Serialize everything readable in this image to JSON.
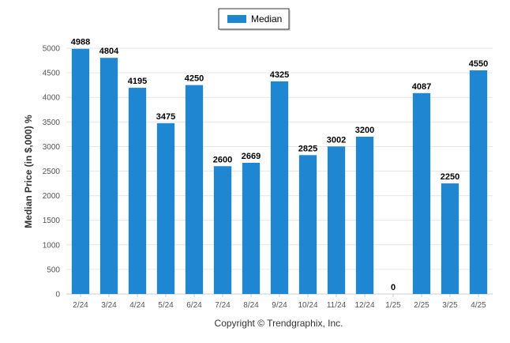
{
  "chart_data": {
    "type": "bar",
    "categories": [
      "2/24",
      "3/24",
      "4/24",
      "5/24",
      "6/24",
      "7/24",
      "8/24",
      "9/24",
      "10/24",
      "11/24",
      "12/24",
      "1/25",
      "2/25",
      "3/25",
      "4/25"
    ],
    "series": [
      {
        "name": "Median",
        "values": [
          4988,
          4804,
          4195,
          3475,
          4250,
          2600,
          2669,
          4325,
          2825,
          3002,
          3200,
          0,
          4087,
          2250,
          4550
        ]
      }
    ],
    "ylabel": "Median Price (in $,000) %",
    "xlabel": "",
    "ylim": [
      0,
      5000
    ],
    "yticks": [
      0,
      500,
      1000,
      1500,
      2000,
      2500,
      3000,
      3500,
      4000,
      4500,
      5000
    ],
    "grid": true,
    "legend_position": "top-center",
    "colors": {
      "bar": "#1f87d1",
      "grid": "#e6e6e6",
      "axis": "#cccccc"
    }
  },
  "footer": {
    "copyright": "Copyright © Trendgraphix, Inc."
  }
}
